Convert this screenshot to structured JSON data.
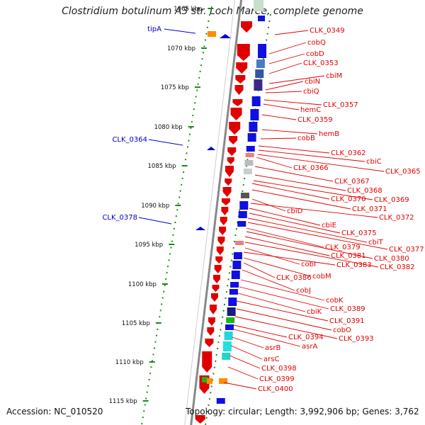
{
  "title": "Clostridium botulinum A3 str. Loch Maree, complete genome",
  "footer": {
    "accession": "Accession: NC_010520",
    "summary": "Topology: circular; Length: 3,992,906 bp; Genes: 3,762"
  },
  "colors": {
    "gene_forward": "#e00000",
    "gene_reverse": "#0a1fd8",
    "label_forward": "#e00000",
    "label_reverse": "#0000cc",
    "backbone": "#888888",
    "gc_skew": "#1a8a1a"
  },
  "axis_ticks": [
    "1065 kbp",
    "1070 kbp",
    "1075 kbp",
    "1080 kbp",
    "1085 kbp",
    "1090 kbp",
    "1095 kbp",
    "1100 kbp",
    "1105 kbp",
    "1110 kbp",
    "1115 kbp"
  ],
  "reverse_labels": [
    "tipA",
    "CLK_0364",
    "CLK_0378"
  ],
  "forward_labels": [
    "CLK_0349",
    "cobQ",
    "cobD",
    "CLK_0353",
    "cbiM",
    "cbiN",
    "cbiQ",
    "CLK_0357",
    "hemC",
    "CLK_0359",
    "hemB",
    "cobB",
    "CLK_0362",
    "cbiC",
    "CLK_0365",
    "CLK_0366",
    "CLK_0367",
    "CLK_0368",
    "CLK_0369",
    "CLK_0370",
    "CLK_0371",
    "cbiD",
    "CLK_0372",
    "cbiE",
    "CLK_0375",
    "cbiT",
    "CLK_0377",
    "CLK_0379",
    "CLK_0380",
    "CLK_0381",
    "CLK_0382",
    "cobI",
    "CLK_0383",
    "cobM",
    "CLK_0386",
    "cobJ",
    "cobK",
    "CLK_0389",
    "cbiK",
    "CLK_0391",
    "cobO",
    "CLK_0393",
    "CLK_0394",
    "asrA",
    "asrB",
    "arsC",
    "CLK_0398",
    "CLK_0399",
    "CLK_0400"
  ]
}
